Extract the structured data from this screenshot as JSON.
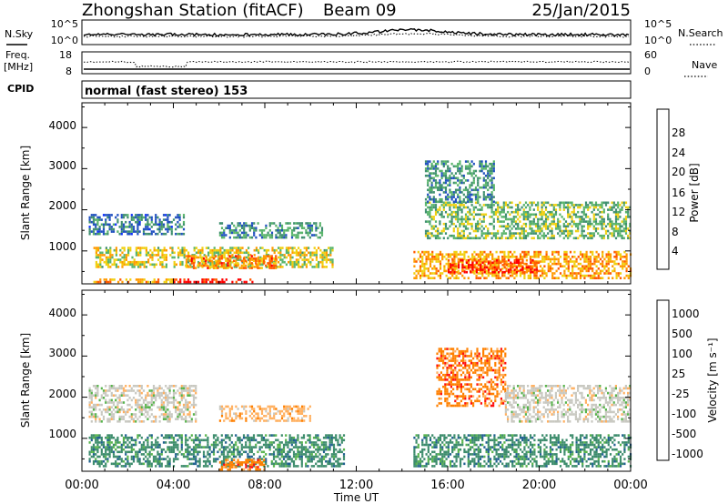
{
  "header": {
    "station": "Zhongshan Station (fitACF)",
    "beam": "Beam 09",
    "date": "25/Jan/2015"
  },
  "top_panels": {
    "nsky": {
      "label": "N.Sky",
      "left_ticks": [
        "10^5",
        "10^0"
      ],
      "right_ticks": [
        "10^5",
        "10^0"
      ],
      "right_label": "N.Search"
    },
    "freq": {
      "label_line1": "Freq.",
      "label_line2": "[MHz]",
      "left_ticks": [
        "18",
        "8"
      ],
      "right_ticks": [
        "60",
        "0"
      ],
      "right_label": "Nave"
    },
    "cpid": {
      "label": "CPID",
      "text": "normal (fast stereo) 153"
    }
  },
  "chart_data": [
    {
      "type": "heatmap",
      "name": "power",
      "ylabel": "Slant Range [km]",
      "xlabel": "Time UT",
      "xlim": [
        0,
        24
      ],
      "ylim": [
        200,
        4600
      ],
      "yticks": [
        "1000",
        "2000",
        "3000",
        "4000"
      ],
      "colorbar": {
        "label": "Power [dB]",
        "ticks": [
          "4",
          "8",
          "12",
          "16",
          "20",
          "24",
          "28"
        ],
        "range": [
          0,
          30
        ],
        "colors": [
          "#1030ff",
          "#2050c0",
          "#3f8f6f",
          "#58b46a",
          "#f0d010",
          "#ff9a00",
          "#ff5a00",
          "#ff0000"
        ]
      },
      "features": [
        {
          "t0": 0.5,
          "t1": 4.0,
          "r0": 230,
          "r1": 330,
          "value": 20
        },
        {
          "t0": 4.0,
          "t1": 7.5,
          "r0": 230,
          "r1": 330,
          "value": 28
        },
        {
          "t0": 0.5,
          "t1": 11.0,
          "r0": 600,
          "r1": 1100,
          "value": 16
        },
        {
          "t0": 4.5,
          "t1": 8.5,
          "r0": 600,
          "r1": 900,
          "value": 22
        },
        {
          "t0": 0.3,
          "t1": 4.5,
          "r0": 1400,
          "r1": 1900,
          "value": 8
        },
        {
          "t0": 6.0,
          "t1": 10.5,
          "r0": 1300,
          "r1": 1700,
          "value": 10
        },
        {
          "t0": 14.5,
          "t1": 24.0,
          "r0": 350,
          "r1": 1000,
          "value": 20
        },
        {
          "t0": 16.0,
          "t1": 20.0,
          "r0": 500,
          "r1": 800,
          "value": 26
        },
        {
          "t0": 15.0,
          "t1": 24.0,
          "r0": 1300,
          "r1": 2200,
          "value": 13
        },
        {
          "t0": 15.0,
          "t1": 18.0,
          "r0": 2200,
          "r1": 3200,
          "value": 10
        }
      ]
    },
    {
      "type": "heatmap",
      "name": "velocity",
      "ylabel": "Slant Range [km]",
      "xlabel": "Time UT",
      "xlim": [
        0,
        24
      ],
      "ylim": [
        200,
        4600
      ],
      "yticks": [
        "1000",
        "2000",
        "3000",
        "4000"
      ],
      "xticks": [
        "00:00",
        "04:00",
        "08:00",
        "12:00",
        "16:00",
        "20:00",
        "00:00"
      ],
      "colorbar": {
        "label": "Velocity [m s⁻¹]",
        "ticks": [
          "1000",
          "500",
          "100",
          "25",
          "-25",
          "-100",
          "-500",
          "-1000"
        ],
        "colors": [
          "#2020d0",
          "#206090",
          "#3c8c6c",
          "#58b44c",
          "#c8c8c0",
          "#ffb060",
          "#ff8000",
          "#ff1010"
        ]
      },
      "features": [
        {
          "t0": 0.3,
          "t1": 11.5,
          "r0": 300,
          "r1": 1100,
          "velocity": 100
        },
        {
          "t0": 0.3,
          "t1": 5.0,
          "r0": 1400,
          "r1": 2300,
          "velocity": 0
        },
        {
          "t0": 6.0,
          "t1": 10.0,
          "r0": 1400,
          "r1": 1800,
          "velocity": -100
        },
        {
          "t0": 6.0,
          "t1": 8.0,
          "r0": 250,
          "r1": 500,
          "velocity": -500
        },
        {
          "t0": 14.5,
          "t1": 24.0,
          "r0": 350,
          "r1": 1100,
          "velocity": 100
        },
        {
          "t0": 15.5,
          "t1": 18.5,
          "r0": 1800,
          "r1": 3200,
          "velocity": -500
        },
        {
          "t0": 18.5,
          "t1": 24.0,
          "r0": 1400,
          "r1": 2300,
          "velocity": 0
        }
      ]
    }
  ],
  "colors": {
    "frame": "#000000",
    "background": "#ffffff"
  }
}
